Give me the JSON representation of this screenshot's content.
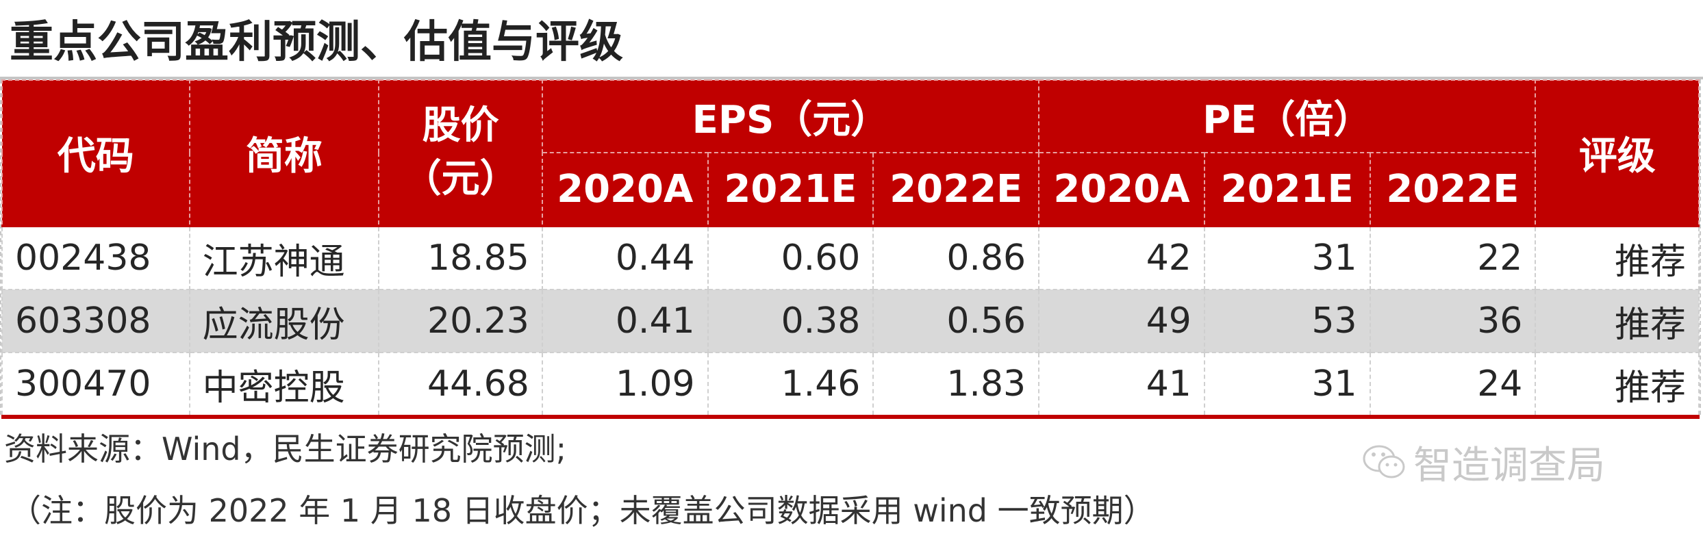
{
  "title": "重点公司盈利预测、估值与评级",
  "header": {
    "code": "代码",
    "name": "简称",
    "price_line1": "股价",
    "price_line2": "（元）",
    "eps_group": "EPS（元）",
    "pe_group": "PE（倍）",
    "rating": "评级",
    "years": [
      "2020A",
      "2021E",
      "2022E"
    ]
  },
  "rows": [
    {
      "code": "002438",
      "name": "江苏神通",
      "price": "18.85",
      "eps": [
        "0.44",
        "0.60",
        "0.86"
      ],
      "pe": [
        "42",
        "31",
        "22"
      ],
      "rating": "推荐"
    },
    {
      "code": "603308",
      "name": "应流股份",
      "price": "20.23",
      "eps": [
        "0.41",
        "0.38",
        "0.56"
      ],
      "pe": [
        "49",
        "53",
        "36"
      ],
      "rating": "推荐"
    },
    {
      "code": "300470",
      "name": "中密控股",
      "price": "44.68",
      "eps": [
        "1.09",
        "1.46",
        "1.83"
      ],
      "pe": [
        "41",
        "31",
        "24"
      ],
      "rating": "推荐"
    }
  ],
  "source": "资料来源：Wind，民生证券研究院预测;",
  "note": "（注：股价为 2022 年 1 月 18 日收盘价；未覆盖公司数据采用 wind 一致预期）",
  "watermark": {
    "icon": "wechat-icon",
    "text": "智造调查局"
  },
  "colors": {
    "header_bg": "#c00000",
    "shaded_row": "#d9d9d9"
  }
}
